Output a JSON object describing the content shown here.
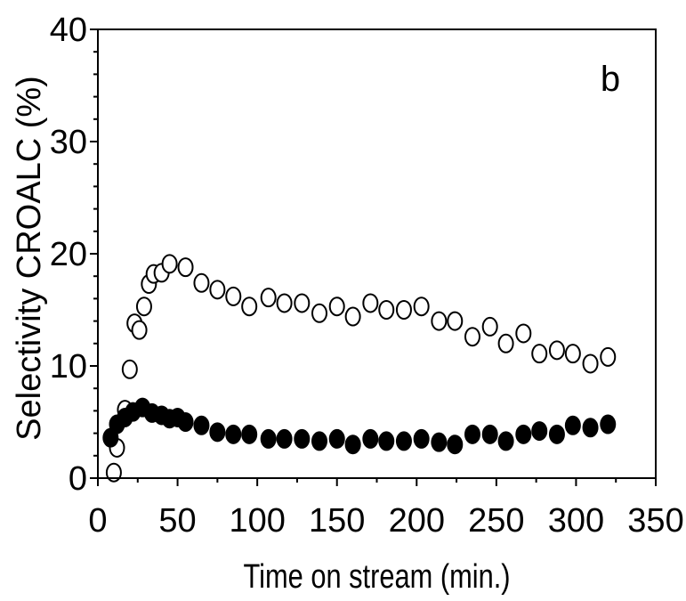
{
  "chart_data": {
    "type": "scatter",
    "panel_label": "b",
    "xlabel": "Time on stream (min.)",
    "ylabel": "Selectivity CROALC (%)",
    "xlim": [
      0,
      350
    ],
    "ylim": [
      0,
      40
    ],
    "x_ticks": [
      "0",
      "50",
      "100",
      "150",
      "200",
      "250",
      "300",
      "350"
    ],
    "y_ticks": [
      "0",
      "10",
      "20",
      "30",
      "40"
    ],
    "grid": false,
    "series": [
      {
        "marker": "open-circle",
        "color": "#000000",
        "points": [
          [
            10,
            0.5
          ],
          [
            12,
            2.7
          ],
          [
            17,
            6.1
          ],
          [
            20,
            9.7
          ],
          [
            23,
            13.8
          ],
          [
            26,
            13.2
          ],
          [
            29,
            15.3
          ],
          [
            32,
            17.3
          ],
          [
            35,
            18.2
          ],
          [
            40,
            18.3
          ],
          [
            45,
            19.1
          ],
          [
            55,
            18.8
          ],
          [
            65,
            17.4
          ],
          [
            75,
            16.8
          ],
          [
            85,
            16.2
          ],
          [
            95,
            15.3
          ],
          [
            107,
            16.1
          ],
          [
            117,
            15.6
          ],
          [
            128,
            15.6
          ],
          [
            139,
            14.7
          ],
          [
            150,
            15.3
          ],
          [
            160,
            14.4
          ],
          [
            171,
            15.6
          ],
          [
            181,
            15.0
          ],
          [
            192,
            15.0
          ],
          [
            203,
            15.3
          ],
          [
            214,
            14.0
          ],
          [
            224,
            14.0
          ],
          [
            235,
            12.6
          ],
          [
            246,
            13.5
          ],
          [
            256,
            12.0
          ],
          [
            267,
            12.9
          ],
          [
            277,
            11.1
          ],
          [
            288,
            11.4
          ],
          [
            298,
            11.1
          ],
          [
            309,
            10.2
          ],
          [
            320,
            10.8
          ]
        ]
      },
      {
        "marker": "filled-circle",
        "color": "#000000",
        "points": [
          [
            8,
            3.6
          ],
          [
            12,
            4.8
          ],
          [
            17,
            5.4
          ],
          [
            22,
            5.9
          ],
          [
            28,
            6.3
          ],
          [
            34,
            5.8
          ],
          [
            40,
            5.6
          ],
          [
            45,
            5.3
          ],
          [
            50,
            5.4
          ],
          [
            55,
            5.0
          ],
          [
            65,
            4.7
          ],
          [
            75,
            4.1
          ],
          [
            85,
            3.9
          ],
          [
            95,
            3.9
          ],
          [
            107,
            3.5
          ],
          [
            117,
            3.5
          ],
          [
            128,
            3.5
          ],
          [
            139,
            3.3
          ],
          [
            150,
            3.5
          ],
          [
            160,
            3.0
          ],
          [
            171,
            3.5
          ],
          [
            181,
            3.3
          ],
          [
            192,
            3.3
          ],
          [
            203,
            3.5
          ],
          [
            214,
            3.2
          ],
          [
            224,
            3.0
          ],
          [
            235,
            3.9
          ],
          [
            246,
            3.9
          ],
          [
            256,
            3.3
          ],
          [
            267,
            3.9
          ],
          [
            277,
            4.2
          ],
          [
            288,
            3.9
          ],
          [
            298,
            4.7
          ],
          [
            309,
            4.5
          ],
          [
            320,
            4.8
          ]
        ]
      }
    ]
  }
}
